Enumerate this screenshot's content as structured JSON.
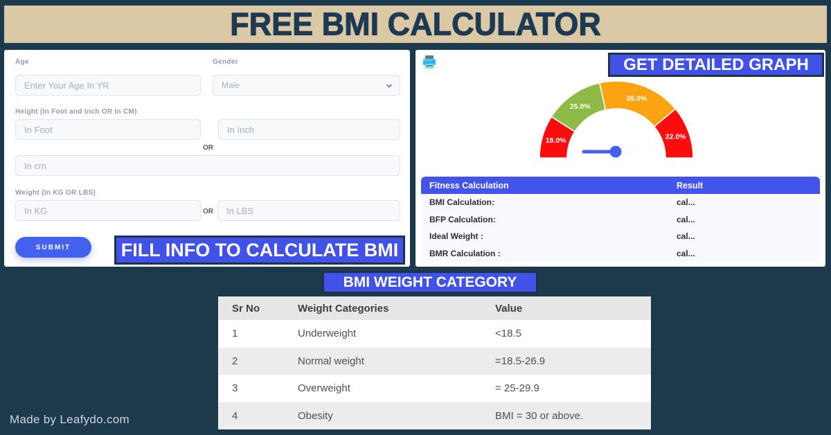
{
  "header": {
    "title": "FREE BMI CALCULATOR"
  },
  "form": {
    "age_label": "Age",
    "age_placeholder": "Enter Your Age In YR",
    "gender_label": "Gender",
    "gender_value": "Male",
    "height_label": "Height (In Foot and Inch OR In CM)",
    "foot_placeholder": "In Foot",
    "inch_placeholder": "In Inch",
    "or_text_1": "OR",
    "cm_placeholder": "In cm",
    "weight_label": "Weight (In KG OR LBS)",
    "kg_placeholder": "In KG",
    "or_text_2": "OR",
    "lbs_placeholder": "In LBS",
    "submit_label": "SUBMIT",
    "banner": "FILL INFO TO CALCULATE BMI"
  },
  "graph_panel": {
    "banner": "GET DETAILED GRAPH",
    "printer_icon": "printer-icon",
    "fitness_table": {
      "headers": [
        "Fitness Calculation",
        "Result"
      ],
      "rows": [
        {
          "label": "BMI Calculation:",
          "value": "cal..."
        },
        {
          "label": "BFP Calculation:",
          "value": "cal..."
        },
        {
          "label": "Ideal Weight :",
          "value": "cal..."
        },
        {
          "label": "BMR Calculation :",
          "value": "cal..."
        }
      ]
    }
  },
  "chart_data": {
    "type": "gauge",
    "title": "",
    "span_degrees": 180,
    "segments": [
      {
        "label": "18.0%",
        "value": 18.0,
        "color": "#fb0d0d"
      },
      {
        "label": "25.0%",
        "value": 25.0,
        "color": "#8dbb45"
      },
      {
        "label": "35.0%",
        "value": 35.0,
        "color": "#fca311"
      },
      {
        "label": "22.0%",
        "value": 22.0,
        "color": "#fb0d0d"
      }
    ],
    "needle": {
      "angle_deg": 180,
      "color": "#4360ee"
    }
  },
  "category_section": {
    "banner": "BMI WEIGHT CATEGORY",
    "table": {
      "headers": [
        "Sr No",
        "Weight Categories",
        "Value"
      ],
      "rows": [
        [
          "1",
          "Underweight",
          "<18.5"
        ],
        [
          "2",
          "Normal weight",
          "=18.5-26.9"
        ],
        [
          "3",
          "Overweight",
          "= 25-29.9"
        ],
        [
          "4",
          "Obesity",
          "BMI = 30 or above."
        ]
      ]
    }
  },
  "footer": {
    "credit": "Made by Leafydo.com"
  },
  "colors": {
    "page_bg": "#1c3a4c",
    "banner_tan": "#dbc8a5",
    "accent_blue": "#4152e8",
    "submit_blue": "#4361ee",
    "table_header_blue": "#4254ec",
    "gauge_red": "#fb0d0d",
    "gauge_green": "#8dbb45",
    "gauge_orange": "#fca311"
  }
}
